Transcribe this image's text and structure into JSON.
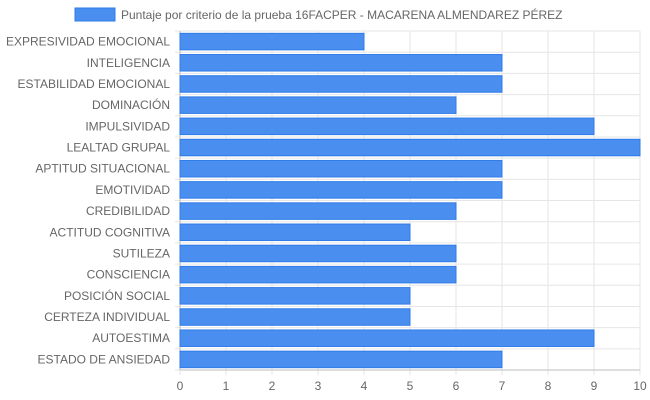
{
  "chart_data": {
    "type": "bar",
    "orientation": "horizontal",
    "legend": {
      "position": "top",
      "label": "Puntaje por criterio de la prueba 16FACPER - MACARENA ALMENDAREZ PÉREZ"
    },
    "categories": [
      "EXPRESIVIDAD EMOCIONAL",
      "INTELIGENCIA",
      "ESTABILIDAD EMOCIONAL",
      "DOMINACIÓN",
      "IMPULSIVIDAD",
      "LEALTAD GRUPAL",
      "APTITUD SITUACIONAL",
      "EMOTIVIDAD",
      "CREDIBILIDAD",
      "ACTITUD COGNITIVA",
      "SUTILEZA",
      "CONSCIENCIA",
      "POSICIÓN SOCIAL",
      "CERTEZA INDIVIDUAL",
      "AUTOESTIMA",
      "ESTADO DE ANSIEDAD"
    ],
    "series": [
      {
        "name": "Puntaje por criterio de la prueba 16FACPER - MACARENA ALMENDAREZ PÉREZ",
        "values": [
          4,
          7,
          7,
          6,
          9,
          10,
          7,
          7,
          6,
          5,
          6,
          6,
          5,
          5,
          9,
          7
        ]
      }
    ],
    "xlim": [
      0,
      10
    ],
    "xticks": [
      "0",
      "1",
      "2",
      "3",
      "4",
      "5",
      "6",
      "7",
      "8",
      "9",
      "10"
    ],
    "grid": true,
    "colors": {
      "bar_fill": "#4a8ff0",
      "bar_stroke": "#2f7be8",
      "grid": "#e6e6e6",
      "text": "#666666"
    }
  }
}
